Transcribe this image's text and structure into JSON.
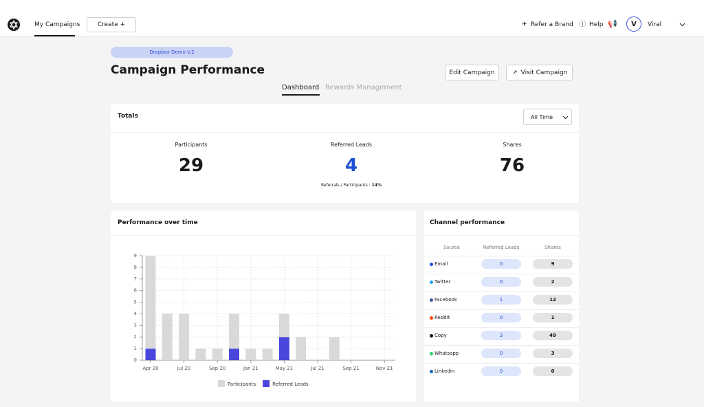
{
  "nav": {
    "my_campaigns": "My Campaigns",
    "create": "Create +",
    "refer": "Refer a Brand",
    "help": "Help",
    "avatar": "V",
    "user": "Viral"
  },
  "header": {
    "tag": "Dropbox Demo V.2",
    "title": "Campaign Performance",
    "edit": "Edit Campaign",
    "visit": "Visit Campaign",
    "tabs": [
      "Dashboard",
      "Rewards Management"
    ]
  },
  "totals": {
    "title": "Totals",
    "filter": "All Time",
    "stats": [
      {
        "label": "Participants",
        "value": 29
      },
      {
        "label": "Referred Leads",
        "value": 4
      },
      {
        "label": "Shares",
        "value": 76
      }
    ],
    "ratio_label": "Referrals / Participants :",
    "ratio_value": "14%"
  },
  "performance": {
    "title": "Performance over time",
    "chart": {
      "type": "stacked_bar",
      "categories": [
        "Apr 20",
        null,
        "Jul 20",
        null,
        "Sep 20",
        null,
        "Jan 21",
        null,
        "May 21",
        null,
        "Jul 21",
        null,
        "Sep 21",
        null,
        "Nov 21"
      ],
      "series": [
        {
          "name": "Referred Leads",
          "color": "#4a45db",
          "values": [
            1,
            0,
            0,
            0,
            0,
            1,
            0,
            0,
            2,
            0,
            0,
            0,
            0,
            0,
            0
          ]
        },
        {
          "name": "Participants",
          "color": "#d9d9d9",
          "values": [
            8,
            4,
            4,
            1,
            1,
            3,
            1,
            1,
            2,
            2,
            0,
            2,
            0,
            0,
            0
          ]
        }
      ],
      "legend_order": [
        1,
        0
      ],
      "ylim": [
        0,
        9
      ],
      "yticks": [
        0,
        1,
        2,
        3,
        4,
        5,
        6,
        7,
        8,
        9
      ],
      "grid": true
    }
  },
  "channels": {
    "title": "Channel performance",
    "columns": [
      "Source",
      "Referred Leads",
      "Shares"
    ],
    "rows": [
      {
        "source": "Email",
        "color": "#1f4fd6",
        "leads": 0,
        "shares": 9
      },
      {
        "source": "Twitter",
        "color": "#1da1f2",
        "leads": 0,
        "shares": 2
      },
      {
        "source": "Facebook",
        "color": "#3b5998",
        "leads": 1,
        "shares": 12
      },
      {
        "source": "Reddit",
        "color": "#ff4500",
        "leads": 0,
        "shares": 1
      },
      {
        "source": "Copy",
        "color": "#111111",
        "leads": 3,
        "shares": 49
      },
      {
        "source": "Whatsapp",
        "color": "#25d366",
        "leads": 0,
        "shares": 3
      },
      {
        "source": "Linkedin",
        "color": "#0a66c2",
        "leads": 0,
        "shares": 0
      }
    ]
  }
}
